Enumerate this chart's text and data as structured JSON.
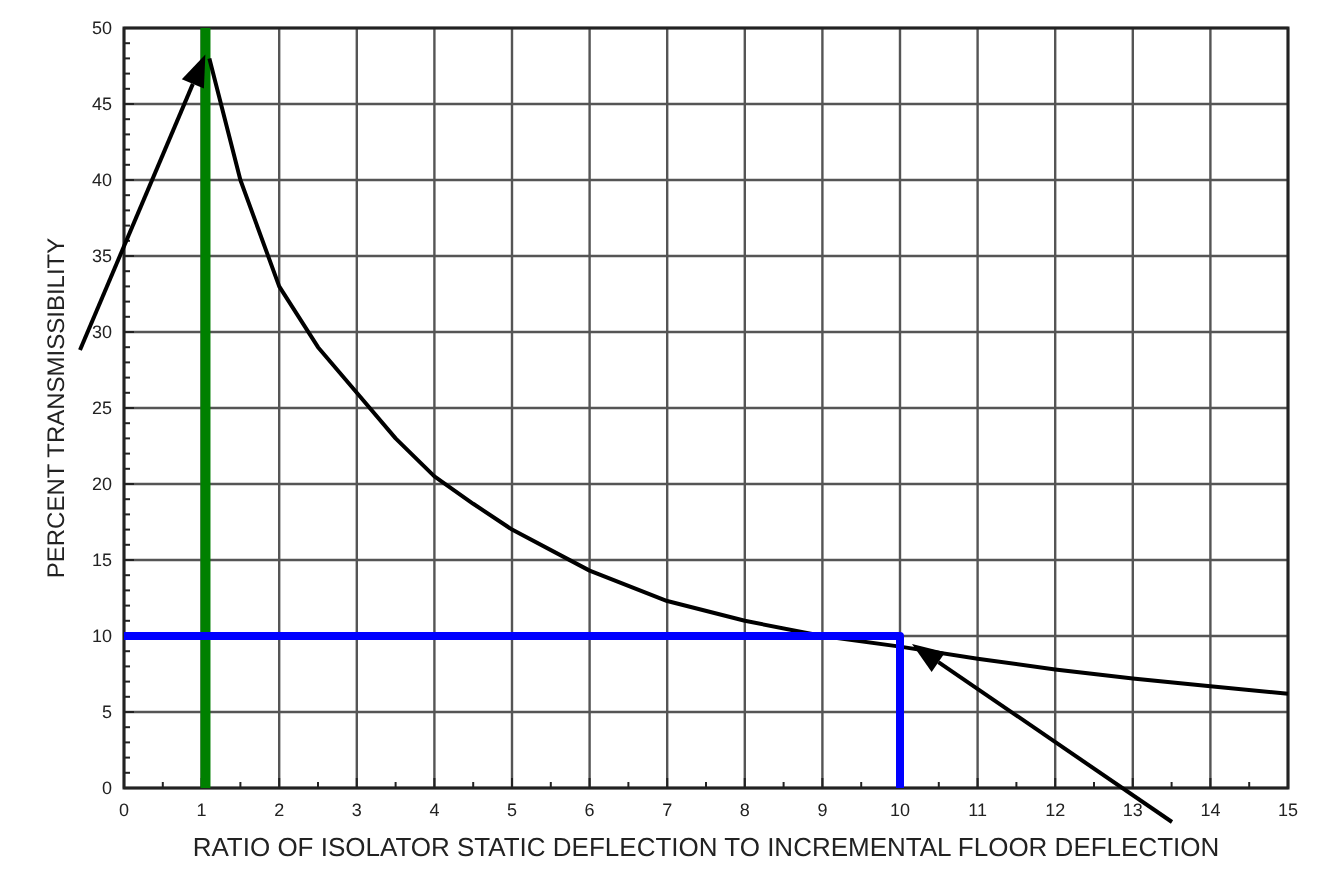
{
  "chart_data": {
    "type": "line",
    "xlabel": "RATIO OF ISOLATOR STATIC DEFLECTION TO INCREMENTAL FLOOR DEFLECTION",
    "ylabel": "PERCENT TRANSMISSIBILITY",
    "xlim": [
      0,
      15
    ],
    "ylim": [
      0,
      50
    ],
    "xticks": [
      0,
      {
        "value": 0.5,
        "label": null
      },
      1,
      {
        "value": 1.5,
        "label": null
      },
      2,
      {
        "value": 2.5,
        "label": null
      },
      3,
      {
        "value": 3.5,
        "label": null
      },
      4,
      {
        "value": 4.5,
        "label": null
      },
      5,
      {
        "value": 5.5,
        "label": null
      },
      6,
      {
        "value": 6.5,
        "label": null
      },
      7,
      {
        "value": 7.5,
        "label": null
      },
      8,
      {
        "value": 8.5,
        "label": null
      },
      9,
      {
        "value": 9.5,
        "label": null
      },
      10,
      {
        "value": 10.5,
        "label": null
      },
      11,
      {
        "value": 11.5,
        "label": null
      },
      12,
      {
        "value": 12.5,
        "label": null
      },
      13,
      {
        "value": 13.5,
        "label": null
      },
      14,
      {
        "value": 14.5,
        "label": null
      },
      15
    ],
    "yticks": [
      0,
      {
        "value": 1,
        "label": null
      },
      {
        "value": 2,
        "label": null
      },
      {
        "value": 3,
        "label": null
      },
      {
        "value": 4,
        "label": null
      },
      5,
      {
        "value": 6,
        "label": null
      },
      {
        "value": 7,
        "label": null
      },
      {
        "value": 8,
        "label": null
      },
      {
        "value": 9,
        "label": null
      },
      10,
      {
        "value": 11,
        "label": null
      },
      {
        "value": 12,
        "label": null
      },
      {
        "value": 13,
        "label": null
      },
      {
        "value": 14,
        "label": null
      },
      15,
      {
        "value": 16,
        "label": null
      },
      {
        "value": 17,
        "label": null
      },
      {
        "value": 18,
        "label": null
      },
      {
        "value": 19,
        "label": null
      },
      20,
      {
        "value": 21,
        "label": null
      },
      {
        "value": 22,
        "label": null
      },
      {
        "value": 23,
        "label": null
      },
      {
        "value": 24,
        "label": null
      },
      25,
      {
        "value": 26,
        "label": null
      },
      {
        "value": 27,
        "label": null
      },
      {
        "value": 28,
        "label": null
      },
      {
        "value": 29,
        "label": null
      },
      30,
      {
        "value": 31,
        "label": null
      },
      {
        "value": 32,
        "label": null
      },
      {
        "value": 33,
        "label": null
      },
      {
        "value": 34,
        "label": null
      },
      35,
      {
        "value": 36,
        "label": null
      },
      {
        "value": 37,
        "label": null
      },
      {
        "value": 38,
        "label": null
      },
      {
        "value": 39,
        "label": null
      },
      40,
      {
        "value": 41,
        "label": null
      },
      {
        "value": 42,
        "label": null
      },
      {
        "value": 43,
        "label": null
      },
      {
        "value": 44,
        "label": null
      },
      45,
      {
        "value": 46,
        "label": null
      },
      {
        "value": 47,
        "label": null
      },
      {
        "value": 48,
        "label": null
      },
      {
        "value": 49,
        "label": null
      },
      50
    ],
    "grid": true,
    "marker": "none",
    "line_style": "solid",
    "series": [
      {
        "color": "#000000",
        "x": [
          1.1,
          1.5,
          2,
          2.5,
          3,
          3.5,
          4,
          4.5,
          5,
          6,
          7,
          8,
          9,
          10,
          11,
          12,
          13,
          14,
          15
        ],
        "values": [
          48,
          40,
          33,
          29,
          26,
          23,
          20.5,
          18.7,
          17,
          14.3,
          12.3,
          11,
          10,
          9.3,
          8.5,
          7.8,
          7.2,
          6.7,
          6.2
        ]
      },
      {
        "color": "#0000ff",
        "x": [
          0,
          10,
          10
        ],
        "values": [
          10,
          10,
          0
        ]
      }
    ],
    "ref_lines": [
      {
        "axis": "x",
        "value": 1.05,
        "color": "#008000"
      }
    ]
  }
}
